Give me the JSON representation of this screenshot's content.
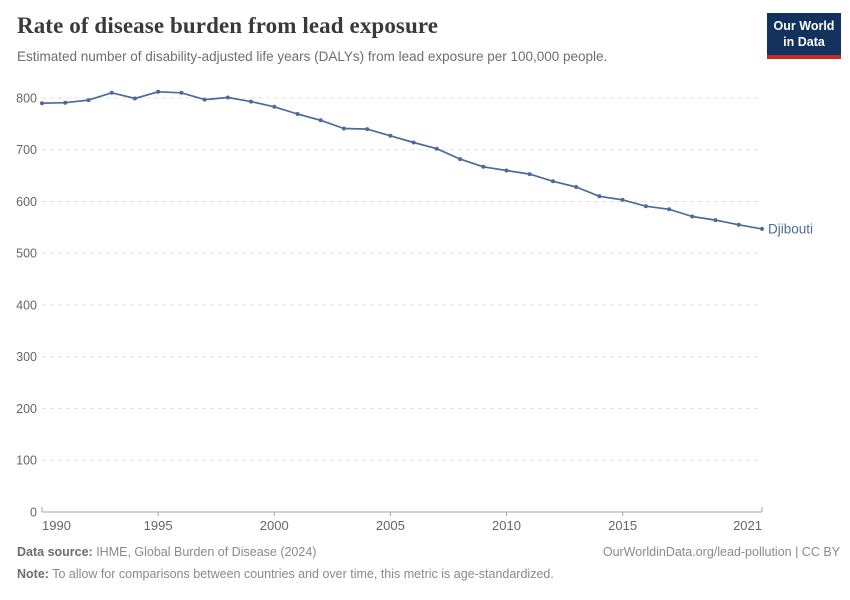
{
  "header": {
    "title": "Rate of disease burden from lead exposure",
    "subtitle": "Estimated number of disability-adjusted life years (DALYs) from lead exposure per 100,000 people.",
    "logo": {
      "line1": "Our World",
      "line2": "in Data",
      "bg_color": "#12315c",
      "stripe_color": "#c62a24"
    }
  },
  "chart_data": {
    "type": "line",
    "title": "Rate of disease burden from lead exposure",
    "x": [
      1990,
      1991,
      1992,
      1993,
      1994,
      1995,
      1996,
      1997,
      1998,
      1999,
      2000,
      2001,
      2002,
      2003,
      2004,
      2005,
      2006,
      2007,
      2008,
      2009,
      2010,
      2011,
      2012,
      2013,
      2014,
      2015,
      2016,
      2017,
      2018,
      2019,
      2020,
      2021
    ],
    "series": [
      {
        "name": "Djibouti",
        "color": "#4C6A9C",
        "values": [
          790,
          791,
          796,
          810,
          799,
          812,
          810,
          797,
          801,
          793,
          783,
          769,
          757,
          741,
          740,
          727,
          714,
          702,
          682,
          667,
          660,
          653,
          639,
          628,
          610,
          603,
          591,
          585,
          571,
          564,
          555,
          547
        ]
      }
    ],
    "xlabel": "",
    "ylabel": "",
    "xticks": [
      1990,
      1995,
      2000,
      2005,
      2010,
      2015,
      2021
    ],
    "yticks": [
      0,
      100,
      200,
      300,
      400,
      500,
      600,
      700,
      800
    ],
    "xlim": [
      1990,
      2021
    ],
    "ylim": [
      0,
      850
    ],
    "grid": "horizontal-dashed",
    "legend_position": "end-of-line-label",
    "entity_label": "Djibouti",
    "colors": {
      "gridline": "#e0e0e0",
      "axis": "#a6a6a6",
      "tick_label": "#666666"
    }
  },
  "footer": {
    "datasource_label": "Data source:",
    "datasource_text": " IHME, Global Burden of Disease (2024)",
    "link_text": "OurWorldinData.org/lead-pollution | CC BY",
    "note_label": "Note:",
    "note_text": " To allow for comparisons between countries and over time, this metric is age-standardized."
  }
}
